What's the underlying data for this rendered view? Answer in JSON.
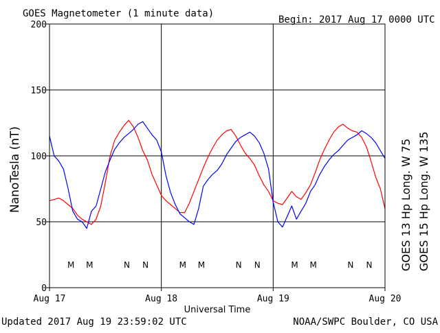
{
  "header": {
    "title": "GOES Magnetometer (1 minute data)",
    "begin": "Begin:  2017 Aug 17 0000 UTC"
  },
  "footer": {
    "updated": "Updated 2017 Aug 19 23:59:02 UTC",
    "credit": "NOAA/SWPC Boulder, CO USA"
  },
  "colors": {
    "goes13": "#ff0000",
    "goes15": "#0000ff",
    "axis": "#000000"
  },
  "chart_data": {
    "type": "line",
    "title": "GOES Magnetometer (1 minute data)",
    "xlabel": "Universal Time",
    "ylabel": "NanoTesla (nT)",
    "ylim": [
      0,
      200
    ],
    "xlim": [
      0,
      72
    ],
    "x_unit": "hours since 2017 Aug 17 0000 UTC",
    "y_ticks": [
      0,
      50,
      100,
      150,
      200
    ],
    "x_ticks": [
      {
        "x": 0,
        "label": "Aug 17"
      },
      {
        "x": 24,
        "label": "Aug 18"
      },
      {
        "x": 48,
        "label": "Aug 19"
      },
      {
        "x": 72,
        "label": "Aug 20"
      }
    ],
    "grid": true,
    "series": [
      {
        "name": "GOES 13 Hp  Long. W 75",
        "color": "#ff0000",
        "x": [
          0,
          1,
          2,
          3,
          4,
          5,
          6,
          7,
          8,
          9,
          10,
          11,
          12,
          13,
          14,
          15,
          16,
          17,
          18,
          19,
          20,
          21,
          22,
          23,
          24,
          25,
          26,
          27,
          28,
          29,
          30,
          31,
          32,
          33,
          34,
          35,
          36,
          37,
          38,
          39,
          40,
          41,
          42,
          43,
          44,
          45,
          46,
          47,
          48,
          49,
          50,
          51,
          52,
          53,
          54,
          55,
          56,
          57,
          58,
          59,
          60,
          61,
          62,
          63,
          64,
          65,
          66,
          67,
          68,
          69,
          70,
          71,
          72
        ],
        "values": [
          66,
          67,
          68,
          66,
          63,
          60,
          55,
          52,
          50,
          48,
          52,
          62,
          80,
          100,
          112,
          118,
          123,
          127,
          122,
          114,
          104,
          97,
          86,
          78,
          70,
          66,
          63,
          60,
          57,
          57,
          64,
          73,
          82,
          91,
          99,
          106,
          112,
          116,
          119,
          120,
          115,
          108,
          102,
          98,
          93,
          85,
          78,
          73,
          66,
          64,
          63,
          68,
          73,
          69,
          67,
          72,
          78,
          87,
          97,
          105,
          112,
          118,
          122,
          124,
          121,
          119,
          118,
          114,
          107,
          96,
          84,
          75,
          60
        ]
      },
      {
        "name": "GOES 15 Hp  Long. W 135",
        "color": "#0000ff",
        "x": [
          0,
          1,
          2,
          3,
          4,
          5,
          6,
          7,
          8,
          9,
          10,
          11,
          12,
          13,
          14,
          15,
          16,
          17,
          18,
          19,
          20,
          21,
          22,
          23,
          24,
          25,
          26,
          27,
          28,
          29,
          30,
          31,
          32,
          33,
          34,
          35,
          36,
          37,
          38,
          39,
          40,
          41,
          42,
          43,
          44,
          45,
          46,
          47,
          48,
          49,
          50,
          51,
          52,
          53,
          54,
          55,
          56,
          57,
          58,
          59,
          60,
          61,
          62,
          63,
          64,
          65,
          66,
          67,
          68,
          69,
          70,
          71,
          72
        ],
        "values": [
          115,
          100,
          96,
          90,
          75,
          58,
          52,
          50,
          45,
          58,
          62,
          75,
          88,
          97,
          105,
          110,
          114,
          117,
          120,
          124,
          126,
          121,
          116,
          112,
          103,
          85,
          72,
          63,
          56,
          53,
          50,
          48,
          60,
          77,
          82,
          86,
          89,
          94,
          101,
          106,
          111,
          114,
          116,
          118,
          115,
          110,
          102,
          90,
          65,
          50,
          46,
          54,
          62,
          52,
          58,
          64,
          73,
          78,
          86,
          92,
          97,
          101,
          104,
          108,
          112,
          114,
          116,
          119,
          117,
          114,
          110,
          104,
          98
        ]
      }
    ],
    "markers": [
      {
        "label": "M",
        "color": "#ff0000",
        "x": 4.6
      },
      {
        "label": "M",
        "color": "#0000ff",
        "x": 8.6
      },
      {
        "label": "N",
        "color": "#ff0000",
        "x": 16.6
      },
      {
        "label": "N",
        "color": "#0000ff",
        "x": 20.6
      },
      {
        "label": "M",
        "color": "#ff0000",
        "x": 28.6
      },
      {
        "label": "M",
        "color": "#0000ff",
        "x": 32.6
      },
      {
        "label": "N",
        "color": "#ff0000",
        "x": 40.6
      },
      {
        "label": "N",
        "color": "#0000ff",
        "x": 44.6
      },
      {
        "label": "M",
        "color": "#ff0000",
        "x": 52.6
      },
      {
        "label": "M",
        "color": "#0000ff",
        "x": 56.6
      },
      {
        "label": "N",
        "color": "#ff0000",
        "x": 64.6
      },
      {
        "label": "N",
        "color": "#0000ff",
        "x": 68.6
      }
    ]
  }
}
